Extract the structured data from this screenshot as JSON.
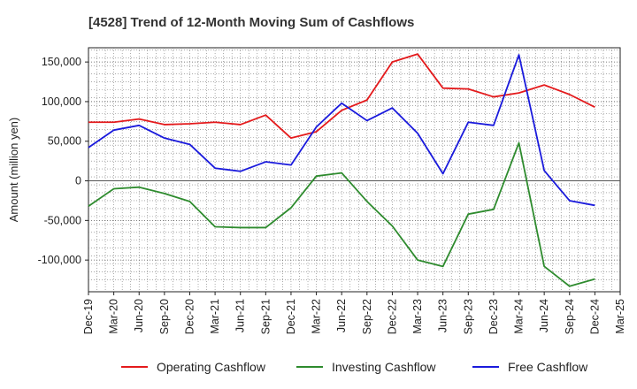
{
  "chart_data": {
    "type": "line",
    "title": "[4528]  Trend of 12-Month Moving Sum of Cashflows",
    "xlabel": "",
    "ylabel": "Amount (million yen)",
    "ylim": [
      -140000,
      168000
    ],
    "yticks": [
      150000,
      100000,
      50000,
      0,
      -50000,
      -100000
    ],
    "ytick_labels": [
      "150,000",
      "100,000",
      "50,000",
      "0",
      "-50,000",
      "-100,000"
    ],
    "categories": [
      "Dec-19",
      "Mar-20",
      "Jun-20",
      "Sep-20",
      "Dec-20",
      "Mar-21",
      "Jun-21",
      "Sep-21",
      "Dec-21",
      "Mar-22",
      "Jun-22",
      "Sep-22",
      "Dec-22",
      "Mar-23",
      "Jun-23",
      "Sep-23",
      "Dec-23",
      "Mar-24",
      "Jun-24",
      "Sep-24",
      "Dec-24",
      "Mar-25"
    ],
    "grid": true,
    "legend_position": "bottom",
    "series": [
      {
        "name": "Operating Cashflow",
        "color": "#e41a1c",
        "values": [
          74000,
          74000,
          78000,
          71000,
          72000,
          74000,
          71000,
          83000,
          54000,
          62000,
          89000,
          102000,
          150000,
          160000,
          117000,
          116000,
          106000,
          111000,
          121000,
          109000,
          93000,
          null
        ]
      },
      {
        "name": "Investing Cashflow",
        "color": "#2e8b2e",
        "values": [
          -32000,
          -10000,
          -8000,
          -16000,
          -26000,
          -58000,
          -59000,
          -59000,
          -34000,
          6000,
          10000,
          -26000,
          -57000,
          -100000,
          -108000,
          -42000,
          -36000,
          48000,
          -108000,
          -133000,
          -124000,
          null
        ]
      },
      {
        "name": "Free Cashflow",
        "color": "#1a1adc",
        "values": [
          42000,
          64000,
          70000,
          54000,
          46000,
          16000,
          12000,
          24000,
          20000,
          68000,
          98000,
          76000,
          92000,
          60000,
          9000,
          74000,
          70000,
          159000,
          13000,
          -25000,
          -31000,
          null
        ]
      }
    ]
  }
}
